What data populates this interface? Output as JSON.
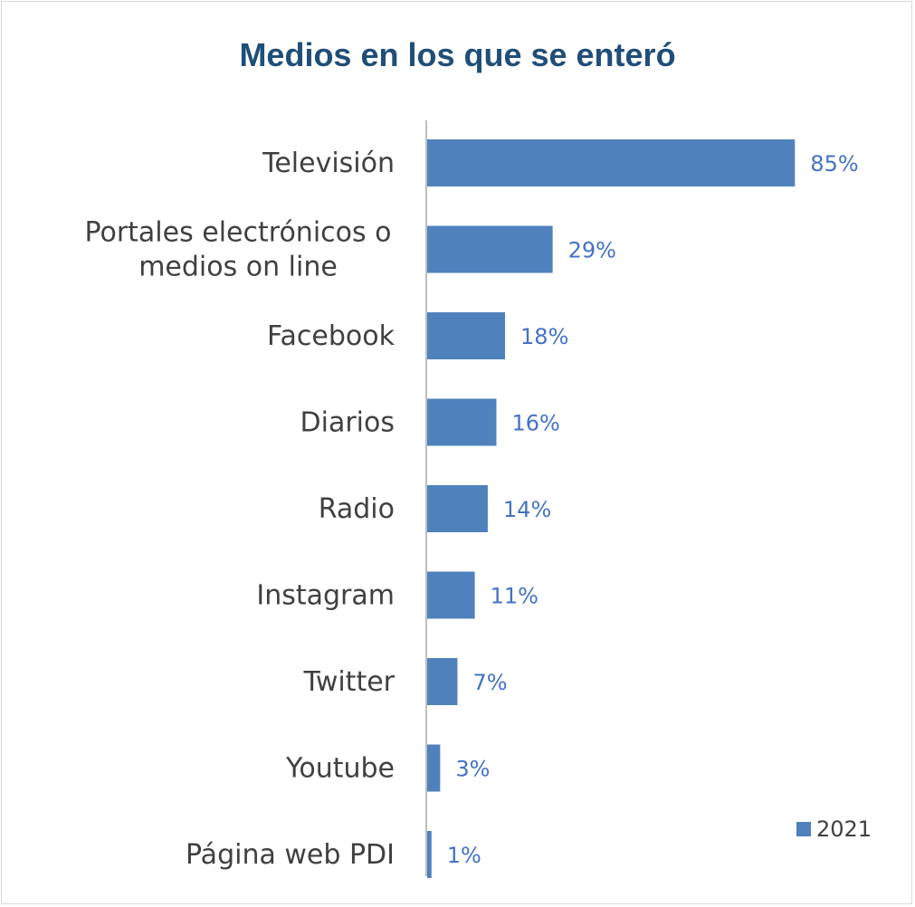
{
  "chart_data": {
    "type": "bar",
    "orientation": "horizontal",
    "title": "Medios en los que se enteró",
    "categories": [
      "Televisión",
      "Portales electrónicos o medios on line",
      "Facebook",
      "Diarios",
      "Radio",
      "Instagram",
      "Twitter",
      "Youtube",
      "Página web PDI"
    ],
    "category_lines": [
      [
        "Televisión"
      ],
      [
        "Portales electrónicos o",
        "medios on line"
      ],
      [
        "Facebook"
      ],
      [
        "Diarios"
      ],
      [
        "Radio"
      ],
      [
        "Instagram"
      ],
      [
        "Twitter"
      ],
      [
        "Youtube"
      ],
      [
        "Página web PDI"
      ]
    ],
    "series": [
      {
        "name": "2021",
        "values": [
          85,
          29,
          18,
          16,
          14,
          11,
          7,
          3,
          1
        ],
        "labels": [
          "85%",
          "29%",
          "18%",
          "16%",
          "14%",
          "11%",
          "7%",
          "3%",
          "1%"
        ]
      }
    ],
    "xlim": [
      0,
      100
    ],
    "grid": false,
    "legend_position": "bottom-right",
    "colors": {
      "bar": "#4f81bd",
      "value_label": "#4472c4",
      "title": "#1f4e79",
      "axis": "#bfbfbf",
      "category_text": "#404040"
    }
  }
}
